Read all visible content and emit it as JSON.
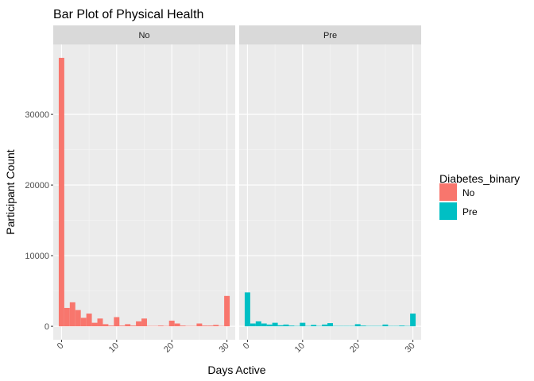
{
  "chart_data": {
    "type": "bar",
    "title": "Bar Plot of Physical Health",
    "xlabel": "Days Active",
    "ylabel": "Participant Count",
    "xlim": [
      -1.5,
      31.5
    ],
    "ylim": [
      -1900,
      39900
    ],
    "x_ticks": [
      0,
      10,
      20,
      30
    ],
    "y_ticks": [
      0,
      10000,
      20000,
      30000
    ],
    "y_tick_labels": [
      "0",
      "10000",
      "20000",
      "30000"
    ],
    "grid": true,
    "legend_position": "right",
    "legend": {
      "title": "Diabetes_binary",
      "entries": [
        {
          "label": "No",
          "color": "#F8766D"
        },
        {
          "label": "Pre",
          "color": "#00BFC4"
        }
      ]
    },
    "x": [
      0,
      1,
      2,
      3,
      4,
      5,
      6,
      7,
      8,
      9,
      10,
      11,
      12,
      13,
      14,
      15,
      16,
      17,
      18,
      19,
      20,
      21,
      22,
      23,
      24,
      25,
      26,
      27,
      28,
      29,
      30
    ],
    "facets": [
      {
        "label": "No",
        "color": "#F8766D",
        "values": [
          38000,
          2600,
          3400,
          2300,
          1200,
          1800,
          500,
          1100,
          300,
          100,
          1300,
          100,
          300,
          100,
          700,
          1100,
          50,
          50,
          100,
          50,
          800,
          400,
          100,
          50,
          50,
          400,
          100,
          100,
          200,
          50,
          4300
        ]
      },
      {
        "label": "Pre",
        "color": "#00BFC4",
        "values": [
          4800,
          400,
          700,
          400,
          250,
          500,
          150,
          250,
          100,
          50,
          500,
          50,
          200,
          50,
          250,
          450,
          50,
          50,
          50,
          50,
          300,
          100,
          50,
          50,
          50,
          250,
          50,
          50,
          100,
          50,
          1800
        ]
      }
    ]
  }
}
